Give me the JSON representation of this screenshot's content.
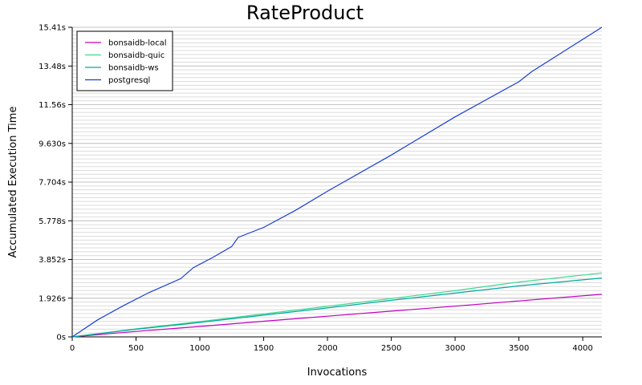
{
  "chart_data": {
    "type": "line",
    "title": "RateProduct",
    "xlabel": "Invocations",
    "ylabel": "Accumulated Execution Time",
    "xlim": [
      0,
      4150
    ],
    "ylim": [
      0,
      15.41
    ],
    "x_ticks": [
      0,
      500,
      1000,
      1500,
      2000,
      2500,
      3000,
      3500,
      4000
    ],
    "x_tick_labels": [
      "0",
      "500",
      "1000",
      "1500",
      "2000",
      "2500",
      "3000",
      "3500",
      "4000"
    ],
    "y_ticks": [
      0,
      1.926,
      3.852,
      5.778,
      7.704,
      9.63,
      11.56,
      13.48,
      15.41
    ],
    "y_tick_labels": [
      "0s",
      "1.926s",
      "3.852s",
      "5.778s",
      "7.704s",
      "9.630s",
      "11.56s",
      "13.48s",
      "15.41s"
    ],
    "minor_y_step": 0.1926,
    "grid": true,
    "legend_position": "top-left",
    "series": [
      {
        "name": "bonsaidb-local",
        "color": "#c000c0",
        "x": [
          0,
          500,
          1000,
          1500,
          2000,
          2500,
          3000,
          3500,
          4150
        ],
        "y": [
          0,
          0.27,
          0.52,
          0.78,
          1.03,
          1.28,
          1.53,
          1.79,
          2.12
        ]
      },
      {
        "name": "bonsaidb-quic",
        "color": "#40d890",
        "x": [
          0,
          500,
          1000,
          1500,
          2000,
          2500,
          3000,
          3500,
          4150
        ],
        "y": [
          0,
          0.4,
          0.76,
          1.14,
          1.52,
          1.91,
          2.3,
          2.73,
          3.18
        ]
      },
      {
        "name": "bonsaidb-ws",
        "color": "#00a8a0",
        "x": [
          0,
          500,
          1000,
          1500,
          2000,
          2500,
          3000,
          3500,
          4150
        ],
        "y": [
          0,
          0.38,
          0.72,
          1.08,
          1.44,
          1.82,
          2.18,
          2.54,
          2.93
        ]
      },
      {
        "name": "postgresql",
        "color": "#1c3fd0",
        "x": [
          0,
          200,
          400,
          600,
          850,
          950,
          1100,
          1250,
          1300,
          1500,
          1750,
          2000,
          2500,
          3000,
          3500,
          3600,
          4150
        ],
        "y": [
          0,
          0.85,
          1.55,
          2.2,
          2.9,
          3.45,
          3.95,
          4.5,
          4.95,
          5.45,
          6.3,
          7.25,
          9.05,
          10.95,
          12.7,
          13.2,
          15.41
        ]
      }
    ]
  }
}
